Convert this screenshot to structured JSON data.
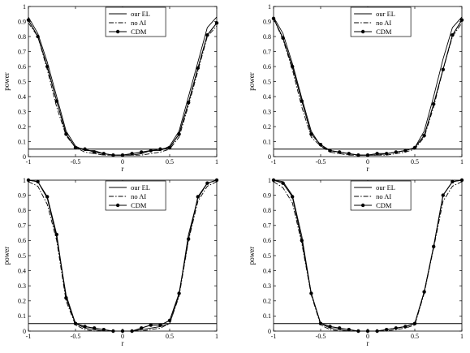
{
  "chart_data": [
    {
      "type": "line",
      "xlabel": "r",
      "ylabel": "power",
      "xlim": [
        -1,
        1
      ],
      "ylim": [
        0,
        1
      ],
      "xticks": [
        "-1",
        "-0.5",
        "0",
        "0.5",
        "1"
      ],
      "yticks": [
        "0",
        "0.1",
        "0.2",
        "0.3",
        "0.4",
        "0.5",
        "0.6",
        "0.7",
        "0.8",
        "0.9",
        "1"
      ],
      "reference_line": 0.05,
      "legend": "top-center",
      "x": [
        -1,
        -0.9,
        -0.8,
        -0.7,
        -0.6,
        -0.5,
        -0.4,
        -0.3,
        -0.2,
        -0.1,
        0,
        0.1,
        0.2,
        0.3,
        0.4,
        0.5,
        0.6,
        0.7,
        0.8,
        0.9,
        1
      ],
      "series": [
        {
          "name": "our EL",
          "style": "solid",
          "values": [
            0.93,
            0.82,
            0.63,
            0.4,
            0.17,
            0.07,
            0.04,
            0.04,
            0.02,
            0.01,
            0.01,
            0.01,
            0.02,
            0.04,
            0.04,
            0.07,
            0.17,
            0.4,
            0.63,
            0.86,
            0.93
          ]
        },
        {
          "name": "no AI",
          "style": "dashdot",
          "values": [
            0.89,
            0.8,
            0.58,
            0.33,
            0.14,
            0.06,
            0.03,
            0.02,
            0.01,
            0.01,
            0.01,
            0.01,
            0.01,
            0.02,
            0.03,
            0.05,
            0.13,
            0.34,
            0.57,
            0.8,
            0.87
          ]
        },
        {
          "name": "CDM",
          "style": "solid-dot",
          "values": [
            0.91,
            0.8,
            0.6,
            0.37,
            0.15,
            0.06,
            0.05,
            0.03,
            0.02,
            0.01,
            0.01,
            0.02,
            0.03,
            0.04,
            0.05,
            0.06,
            0.15,
            0.36,
            0.59,
            0.81,
            0.89
          ]
        }
      ]
    },
    {
      "type": "line",
      "xlabel": "r",
      "ylabel": "power",
      "xlim": [
        -1,
        1
      ],
      "ylim": [
        0,
        1
      ],
      "xticks": [
        "-1",
        "-0.5",
        "0",
        "0.5",
        "1"
      ],
      "yticks": [
        "0",
        "0.1",
        "0.2",
        "0.3",
        "0.4",
        "0.5",
        "0.6",
        "0.7",
        "0.8",
        "0.9",
        "1"
      ],
      "reference_line": 0.05,
      "legend": "top-center",
      "x": [
        -1,
        -0.9,
        -0.8,
        -0.7,
        -0.6,
        -0.5,
        -0.4,
        -0.3,
        -0.2,
        -0.1,
        0,
        0.1,
        0.2,
        0.3,
        0.4,
        0.5,
        0.6,
        0.7,
        0.8,
        0.9,
        1
      ],
      "series": [
        {
          "name": "our EL",
          "style": "solid",
          "values": [
            0.93,
            0.82,
            0.62,
            0.39,
            0.17,
            0.07,
            0.04,
            0.03,
            0.02,
            0.01,
            0.01,
            0.01,
            0.02,
            0.03,
            0.04,
            0.06,
            0.17,
            0.4,
            0.65,
            0.86,
            0.93
          ]
        },
        {
          "name": "no AI",
          "style": "dashdot",
          "values": [
            0.92,
            0.78,
            0.58,
            0.33,
            0.13,
            0.07,
            0.03,
            0.02,
            0.01,
            0.01,
            0.01,
            0.01,
            0.01,
            0.02,
            0.03,
            0.05,
            0.13,
            0.33,
            0.58,
            0.8,
            0.89
          ]
        },
        {
          "name": "CDM",
          "style": "solid-dot",
          "values": [
            0.92,
            0.79,
            0.6,
            0.37,
            0.15,
            0.08,
            0.04,
            0.03,
            0.02,
            0.01,
            0.01,
            0.02,
            0.02,
            0.03,
            0.04,
            0.06,
            0.14,
            0.35,
            0.58,
            0.81,
            0.91
          ]
        }
      ]
    },
    {
      "type": "line",
      "xlabel": "r",
      "ylabel": "power",
      "xlim": [
        -1,
        1
      ],
      "ylim": [
        0,
        1
      ],
      "xticks": [
        "-1",
        "-0.5",
        "0",
        "0.5",
        "1"
      ],
      "yticks": [
        "0",
        "0.1",
        "0.2",
        "0.3",
        "0.4",
        "0.5",
        "0.6",
        "0.7",
        "0.8",
        "0.9",
        "1"
      ],
      "reference_line": 0.05,
      "legend": "top-center",
      "x": [
        -1,
        -0.9,
        -0.8,
        -0.7,
        -0.6,
        -0.5,
        -0.4,
        -0.3,
        -0.2,
        -0.1,
        0,
        0.1,
        0.2,
        0.3,
        0.4,
        0.5,
        0.6,
        0.7,
        0.8,
        0.9,
        1
      ],
      "series": [
        {
          "name": "our EL",
          "style": "solid",
          "values": [
            1.0,
            0.99,
            0.88,
            0.62,
            0.24,
            0.05,
            0.02,
            0.01,
            0.0,
            0.0,
            0.0,
            0.0,
            0.01,
            0.02,
            0.03,
            0.05,
            0.24,
            0.64,
            0.88,
            0.98,
            1.0
          ]
        },
        {
          "name": "no AI",
          "style": "dashdot",
          "values": [
            0.99,
            0.96,
            0.84,
            0.6,
            0.2,
            0.04,
            0.01,
            0.0,
            0.0,
            0.0,
            0.0,
            0.0,
            0.0,
            0.01,
            0.02,
            0.05,
            0.23,
            0.6,
            0.86,
            0.96,
            0.99
          ]
        },
        {
          "name": "CDM",
          "style": "solid-dot",
          "values": [
            1.0,
            0.99,
            0.89,
            0.64,
            0.22,
            0.05,
            0.03,
            0.02,
            0.01,
            0.0,
            0.0,
            0.0,
            0.02,
            0.04,
            0.04,
            0.07,
            0.25,
            0.61,
            0.89,
            0.98,
            1.0
          ]
        }
      ]
    },
    {
      "type": "line",
      "xlabel": "r",
      "ylabel": "power",
      "xlim": [
        -1,
        1
      ],
      "ylim": [
        0,
        1
      ],
      "xticks": [
        "-1",
        "-0.5",
        "0",
        "0.5",
        "1"
      ],
      "yticks": [
        "0",
        "0.1",
        "0.2",
        "0.3",
        "0.4",
        "0.5",
        "0.6",
        "0.7",
        "0.8",
        "0.9",
        "1"
      ],
      "reference_line": 0.05,
      "legend": "top-center",
      "x": [
        -1,
        -0.9,
        -0.8,
        -0.7,
        -0.6,
        -0.5,
        -0.4,
        -0.3,
        -0.2,
        -0.1,
        0,
        0.1,
        0.2,
        0.3,
        0.4,
        0.5,
        0.6,
        0.7,
        0.8,
        0.9,
        1
      ],
      "series": [
        {
          "name": "our EL",
          "style": "solid",
          "values": [
            1.0,
            0.99,
            0.9,
            0.63,
            0.25,
            0.05,
            0.02,
            0.01,
            0.0,
            0.0,
            0.0,
            0.0,
            0.01,
            0.02,
            0.03,
            0.05,
            0.26,
            0.56,
            0.9,
            0.99,
            1.0
          ]
        },
        {
          "name": "no AI",
          "style": "dashdot",
          "values": [
            0.99,
            0.95,
            0.85,
            0.58,
            0.24,
            0.04,
            0.01,
            0.0,
            0.0,
            0.0,
            0.0,
            0.0,
            0.0,
            0.01,
            0.02,
            0.04,
            0.25,
            0.55,
            0.86,
            0.96,
            0.99
          ]
        },
        {
          "name": "CDM",
          "style": "solid-dot",
          "values": [
            1.0,
            0.98,
            0.89,
            0.6,
            0.25,
            0.05,
            0.03,
            0.02,
            0.01,
            0.0,
            0.0,
            0.0,
            0.01,
            0.02,
            0.03,
            0.05,
            0.26,
            0.56,
            0.9,
            0.99,
            1.0
          ]
        }
      ]
    }
  ]
}
